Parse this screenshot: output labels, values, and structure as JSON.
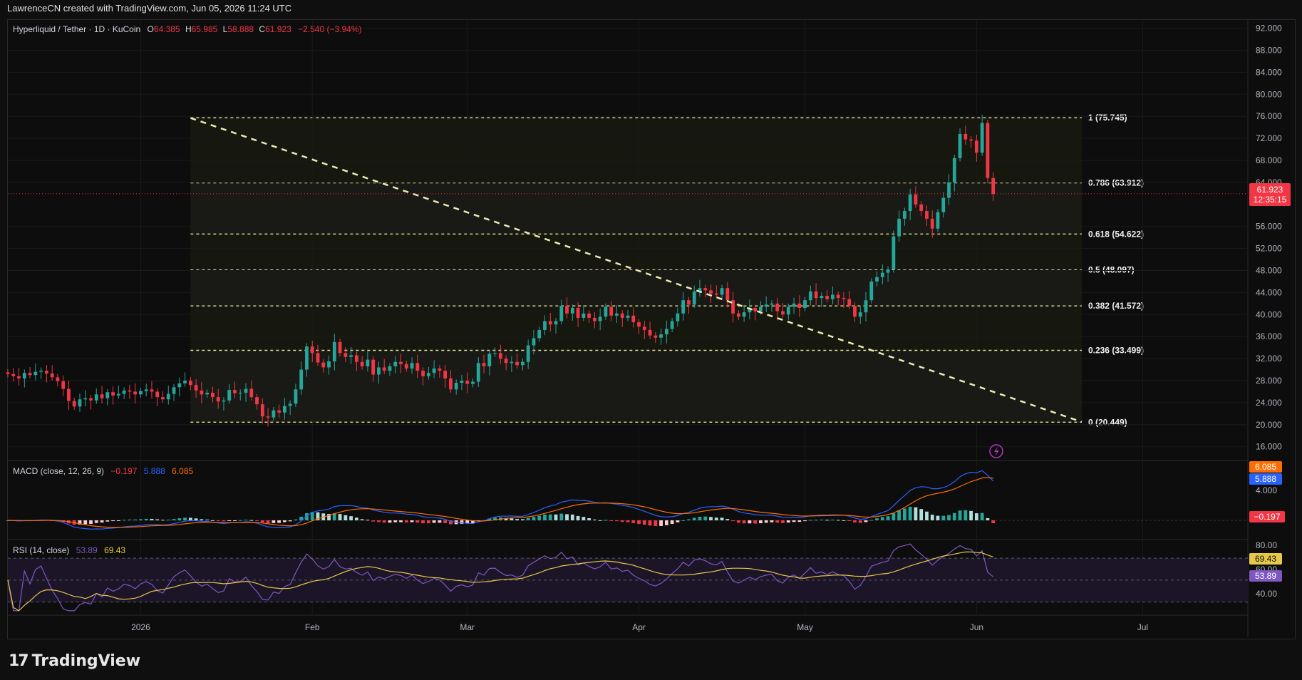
{
  "header": {
    "credit": "LawrenceCN created with TradingView.com, Jun 05, 2026 11:24 UTC"
  },
  "symbol": {
    "name": "Hyperliquid / Tether · 1D · KuCoin",
    "o_label": "O",
    "o": "64.385",
    "h_label": "H",
    "h": "65.985",
    "l_label": "L",
    "l": "58.888",
    "c_label": "C",
    "c": "61.923",
    "change": "−2.540 (−3.94%)"
  },
  "price_badge": {
    "value": "61.923",
    "countdown": "12:35:15"
  },
  "colors": {
    "up": "#26a69a",
    "down": "#f23645",
    "fib": "#e8e6a0",
    "macd": "#2962ff",
    "signal": "#ff6d00",
    "rsi": "#7e57c2",
    "rsi_ma": "#e6c84a"
  },
  "macd": {
    "label": "MACD (close, 12, 26, 9)",
    "hist": "−0.197",
    "macd": "5.888",
    "signal": "6.085",
    "axis_label": "4.000",
    "badges": {
      "signal": "6.085",
      "macd": "5.888",
      "hist": "−0.197"
    }
  },
  "rsi": {
    "label": "RSI (14, close)",
    "rsi": "53.89",
    "ma": "69.43",
    "axis": [
      "80.00",
      "60.00",
      "40.00"
    ],
    "badges": {
      "ma": "69.43",
      "rsi": "53.89"
    }
  },
  "watermark": {
    "logo_mark": "17",
    "logo_text": "TradingView"
  },
  "chart_data": {
    "type": "candlestick",
    "title": "Hyperliquid / Tether · 1D · KuCoin",
    "y_ticks": [
      "92.000",
      "88.000",
      "84.000",
      "80.000",
      "76.000",
      "72.000",
      "68.000",
      "64.000",
      "56.000",
      "52.000",
      "48.000",
      "44.000",
      "40.000",
      "36.000",
      "32.000",
      "28.000",
      "24.000",
      "20.000",
      "16.000"
    ],
    "ylim": [
      13.5,
      93.5
    ],
    "x_ticks": [
      "2026",
      "Feb",
      "Mar",
      "Apr",
      "May",
      "Jun",
      "Jul"
    ],
    "x_tick_dates": [
      "2026-01-01",
      "2026-02-01",
      "2026-03-01",
      "2026-04-01",
      "2026-05-01",
      "2026-06-01",
      "2026-07-01"
    ],
    "x_range_dates": [
      "2025-12-08",
      "2026-07-20"
    ],
    "fibonacci": {
      "start_date": "2026-01-10",
      "end_date": "2026-06-20",
      "levels": [
        {
          "label": "1 (75.745)",
          "value": 75.745
        },
        {
          "label": "0.786 (63.912)",
          "value": 63.912
        },
        {
          "label": "0.618 (54.622)",
          "value": 54.622
        },
        {
          "label": "0.5 (48.097)",
          "value": 48.097
        },
        {
          "label": "0.382 (41.572)",
          "value": 41.572
        },
        {
          "label": "0.236 (33.499)",
          "value": 33.499
        },
        {
          "label": "0 (20.449)",
          "value": 20.449
        }
      ]
    },
    "trendline": {
      "from": {
        "date": "2026-01-10",
        "value": 75.7
      },
      "to": {
        "date": "2026-06-20",
        "value": 20.5
      }
    },
    "closes_anchor": {
      "start_date": "2025-12-08",
      "days": 180
    },
    "closes": [
      29.2,
      28.8,
      28.4,
      29.4,
      29.0,
      29.6,
      29.8,
      29.3,
      28.6,
      27.9,
      26.5,
      24.3,
      23.3,
      24.6,
      24.8,
      24.4,
      25.5,
      24.8,
      25.9,
      25.3,
      25.6,
      26.2,
      26.0,
      25.5,
      26.1,
      26.4,
      26.0,
      25.0,
      24.6,
      25.6,
      26.8,
      27.5,
      28.0,
      27.2,
      26.2,
      25.5,
      25.8,
      25.0,
      24.2,
      24.4,
      26.3,
      25.7,
      25.8,
      26.5,
      25.0,
      23.7,
      21.5,
      21.3,
      22.6,
      22.2,
      23.4,
      23.8,
      26.4,
      30.0,
      34.2,
      33.0,
      31.3,
      30.4,
      31.5,
      35.0,
      33.0,
      32.3,
      32.6,
      31.4,
      30.6,
      31.8,
      29.1,
      30.4,
      29.8,
      30.6,
      31.4,
      31.0,
      30.2,
      31.2,
      29.8,
      28.8,
      29.4,
      30.2,
      29.8,
      28.4,
      26.4,
      27.6,
      28.0,
      27.4,
      27.8,
      31.2,
      30.6,
      32.9,
      33.0,
      32.0,
      31.2,
      31.4,
      30.8,
      31.4,
      34.4,
      35.7,
      37.2,
      38.8,
      38.2,
      38.8,
      41.6,
      40.2,
      41.2,
      39.4,
      40.2,
      39.4,
      38.8,
      39.6,
      41.4,
      39.8,
      40.2,
      39.4,
      39.8,
      38.6,
      37.8,
      37.2,
      36.2,
      35.8,
      36.4,
      37.4,
      38.8,
      40.2,
      42.6,
      41.8,
      44.2,
      44.8,
      44.4,
      43.8,
      43.6,
      44.8,
      42.6,
      40.2,
      39.6,
      40.4,
      41.2,
      40.6,
      41.4,
      41.8,
      42.0,
      40.6,
      40.0,
      41.4,
      42.0,
      41.2,
      42.6,
      44.2,
      43.0,
      43.4,
      42.8,
      43.6,
      43.0,
      42.8,
      41.6,
      39.6,
      40.4,
      42.6,
      46.0,
      46.8,
      47.6,
      48.2,
      54.2,
      57.4,
      58.8,
      61.8,
      60.0,
      58.8,
      57.4,
      55.6,
      58.6,
      61.2,
      64.0,
      68.4,
      72.8,
      71.8,
      71.6,
      69.4,
      74.8,
      64.8,
      61.9
    ],
    "current_price": 61.923,
    "macd": {
      "macd": 5.888,
      "signal": 6.085,
      "histogram": -0.197,
      "ylim": [
        -2.5,
        8.0
      ]
    },
    "rsi": {
      "rsi": 53.89,
      "ma": 69.43,
      "bands": [
        70,
        30
      ],
      "ylim": [
        20,
        85
      ]
    }
  }
}
